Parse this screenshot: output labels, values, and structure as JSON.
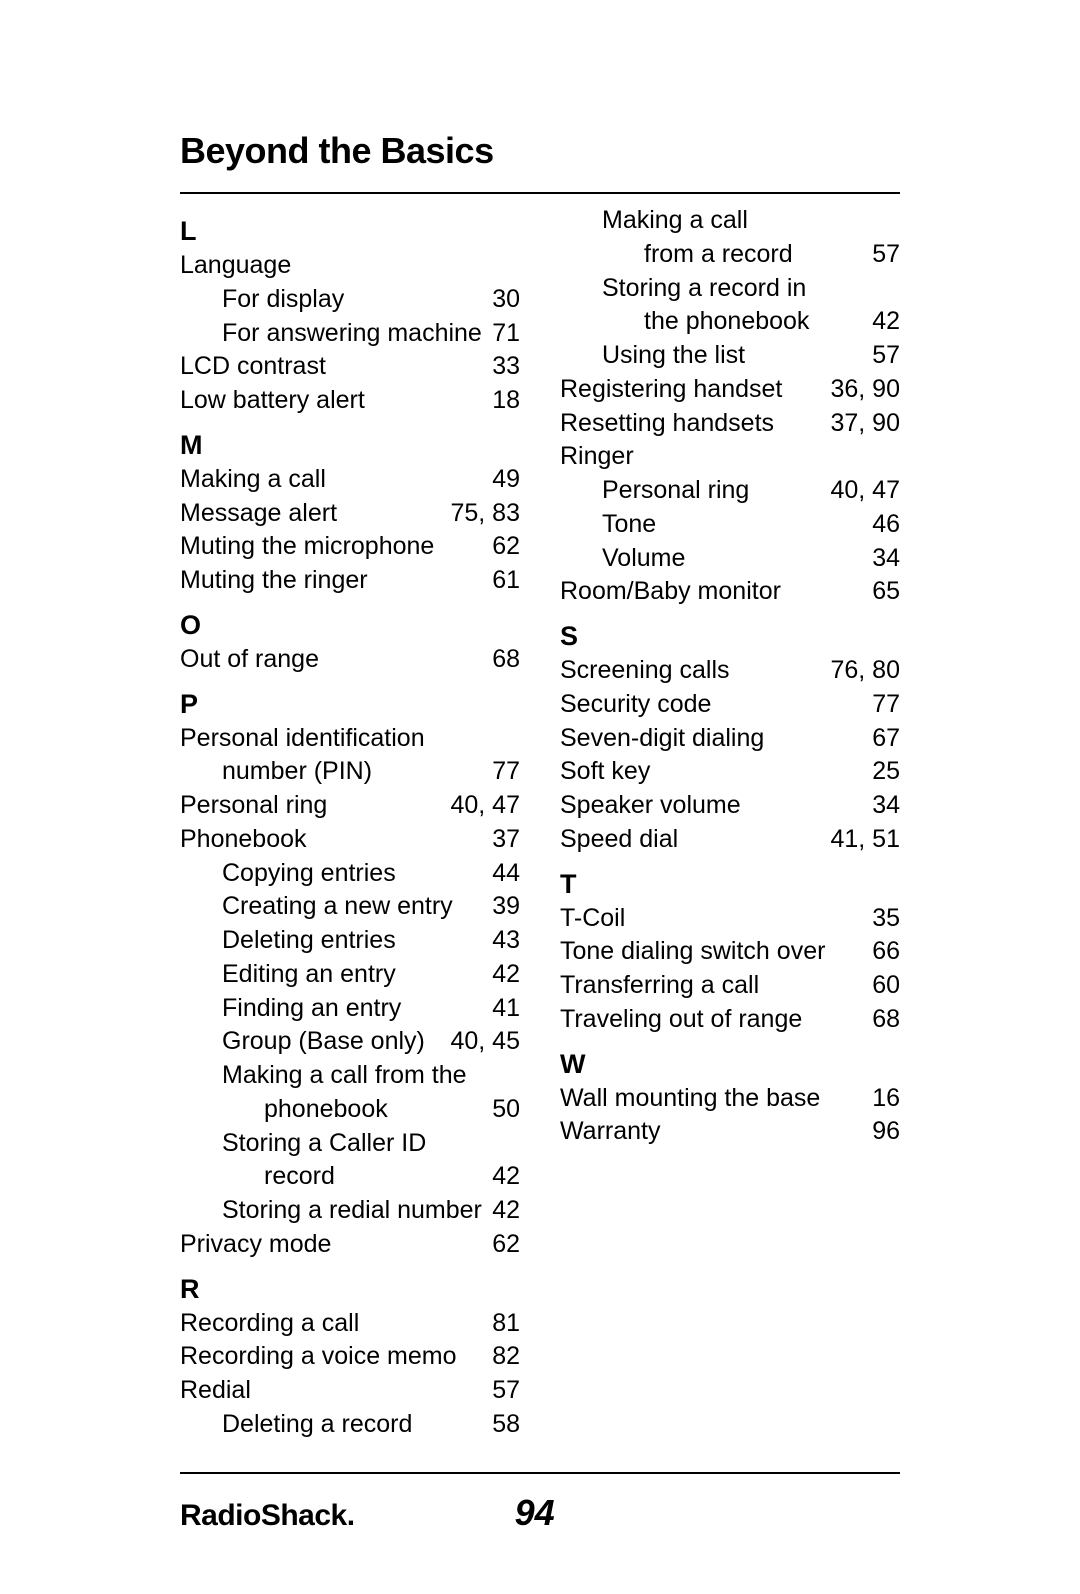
{
  "title": "Beyond the Basics",
  "brand": "RadioShack",
  "page_number": "94",
  "left_column": [
    {
      "type": "letter",
      "text": "L"
    },
    {
      "type": "entry",
      "label": "Language",
      "pages": "",
      "indent": 0
    },
    {
      "type": "entry",
      "label": "For display",
      "pages": "30",
      "indent": 1
    },
    {
      "type": "entry",
      "label": "For answering machine",
      "pages": "71",
      "indent": 1
    },
    {
      "type": "entry",
      "label": "LCD contrast",
      "pages": "33",
      "indent": 0
    },
    {
      "type": "entry",
      "label": "Low battery alert",
      "pages": "18",
      "indent": 0
    },
    {
      "type": "letter",
      "text": "M"
    },
    {
      "type": "entry",
      "label": "Making a call",
      "pages": "49",
      "indent": 0
    },
    {
      "type": "entry",
      "label": "Message alert",
      "pages": "75, 83",
      "indent": 0
    },
    {
      "type": "entry",
      "label": "Muting the microphone",
      "pages": "62",
      "indent": 0
    },
    {
      "type": "entry",
      "label": "Muting the ringer",
      "pages": "61",
      "indent": 0
    },
    {
      "type": "letter",
      "text": "O"
    },
    {
      "type": "entry",
      "label": "Out of range",
      "pages": "68",
      "indent": 0
    },
    {
      "type": "letter",
      "text": "P"
    },
    {
      "type": "entry",
      "label": "Personal identification",
      "pages": "",
      "indent": 0
    },
    {
      "type": "entry",
      "label": "number (PIN)",
      "pages": "77",
      "indent": 1
    },
    {
      "type": "entry",
      "label": "Personal ring",
      "pages": "40, 47",
      "indent": 0
    },
    {
      "type": "entry",
      "label": "Phonebook",
      "pages": "37",
      "indent": 0
    },
    {
      "type": "entry",
      "label": "Copying entries",
      "pages": "44",
      "indent": 1
    },
    {
      "type": "entry",
      "label": "Creating a new entry",
      "pages": "39",
      "indent": 1
    },
    {
      "type": "entry",
      "label": "Deleting entries",
      "pages": "43",
      "indent": 1
    },
    {
      "type": "entry",
      "label": "Editing an entry",
      "pages": "42",
      "indent": 1
    },
    {
      "type": "entry",
      "label": "Finding an entry",
      "pages": "41",
      "indent": 1
    },
    {
      "type": "entry",
      "label": "Group (Base only)",
      "pages": "40, 45",
      "indent": 1
    },
    {
      "type": "entry",
      "label": "Making a call from the",
      "pages": "",
      "indent": 1
    },
    {
      "type": "entry",
      "label": "phonebook",
      "pages": "50",
      "indent": 2
    },
    {
      "type": "entry",
      "label": "Storing a Caller ID",
      "pages": "",
      "indent": 1
    },
    {
      "type": "entry",
      "label": "record",
      "pages": "42",
      "indent": 2
    },
    {
      "type": "entry",
      "label": "Storing a redial number",
      "pages": "42",
      "indent": 1
    },
    {
      "type": "entry",
      "label": "Privacy mode",
      "pages": "62",
      "indent": 0
    },
    {
      "type": "letter",
      "text": "R"
    },
    {
      "type": "entry",
      "label": "Recording a call",
      "pages": "81",
      "indent": 0
    },
    {
      "type": "entry",
      "label": "Recording a voice memo",
      "pages": "82",
      "indent": 0
    },
    {
      "type": "entry",
      "label": "Redial",
      "pages": "57",
      "indent": 0
    },
    {
      "type": "entry",
      "label": "Deleting a record",
      "pages": "58",
      "indent": 1
    }
  ],
  "right_column": [
    {
      "type": "entry",
      "label": "Making a call",
      "pages": "",
      "indent": 1
    },
    {
      "type": "entry",
      "label": "from a record",
      "pages": "57",
      "indent": 2
    },
    {
      "type": "entry",
      "label": "Storing a record in",
      "pages": "",
      "indent": 1
    },
    {
      "type": "entry",
      "label": "the phonebook",
      "pages": "42",
      "indent": 2
    },
    {
      "type": "entry",
      "label": "Using the list",
      "pages": "57",
      "indent": 1
    },
    {
      "type": "entry",
      "label": "Registering handset",
      "pages": "36, 90",
      "indent": 0
    },
    {
      "type": "entry",
      "label": "Resetting handsets",
      "pages": "37, 90",
      "indent": 0
    },
    {
      "type": "entry",
      "label": "Ringer",
      "pages": "",
      "indent": 0
    },
    {
      "type": "entry",
      "label": "Personal ring",
      "pages": "40, 47",
      "indent": 1
    },
    {
      "type": "entry",
      "label": "Tone",
      "pages": "46",
      "indent": 1
    },
    {
      "type": "entry",
      "label": "Volume",
      "pages": "34",
      "indent": 1
    },
    {
      "type": "entry",
      "label": "Room/Baby monitor",
      "pages": "65",
      "indent": 0
    },
    {
      "type": "letter",
      "text": "S"
    },
    {
      "type": "entry",
      "label": "Screening calls",
      "pages": "76, 80",
      "indent": 0
    },
    {
      "type": "entry",
      "label": "Security code",
      "pages": "77",
      "indent": 0
    },
    {
      "type": "entry",
      "label": "Seven-digit dialing",
      "pages": "67",
      "indent": 0
    },
    {
      "type": "entry",
      "label": "Soft key",
      "pages": "25",
      "indent": 0
    },
    {
      "type": "entry",
      "label": "Speaker volume",
      "pages": "34",
      "indent": 0
    },
    {
      "type": "entry",
      "label": "Speed dial",
      "pages": "41, 51",
      "indent": 0
    },
    {
      "type": "letter",
      "text": "T"
    },
    {
      "type": "entry",
      "label": "T-Coil",
      "pages": "35",
      "indent": 0
    },
    {
      "type": "entry",
      "label": "Tone dialing switch over",
      "pages": "66",
      "indent": 0
    },
    {
      "type": "entry",
      "label": "Transferring a call",
      "pages": "60",
      "indent": 0
    },
    {
      "type": "entry",
      "label": "Traveling out of range",
      "pages": "68",
      "indent": 0
    },
    {
      "type": "letter",
      "text": "W"
    },
    {
      "type": "entry",
      "label": "Wall mounting the base",
      "pages": "16",
      "indent": 0
    },
    {
      "type": "entry",
      "label": "Warranty",
      "pages": "96",
      "indent": 0
    }
  ]
}
